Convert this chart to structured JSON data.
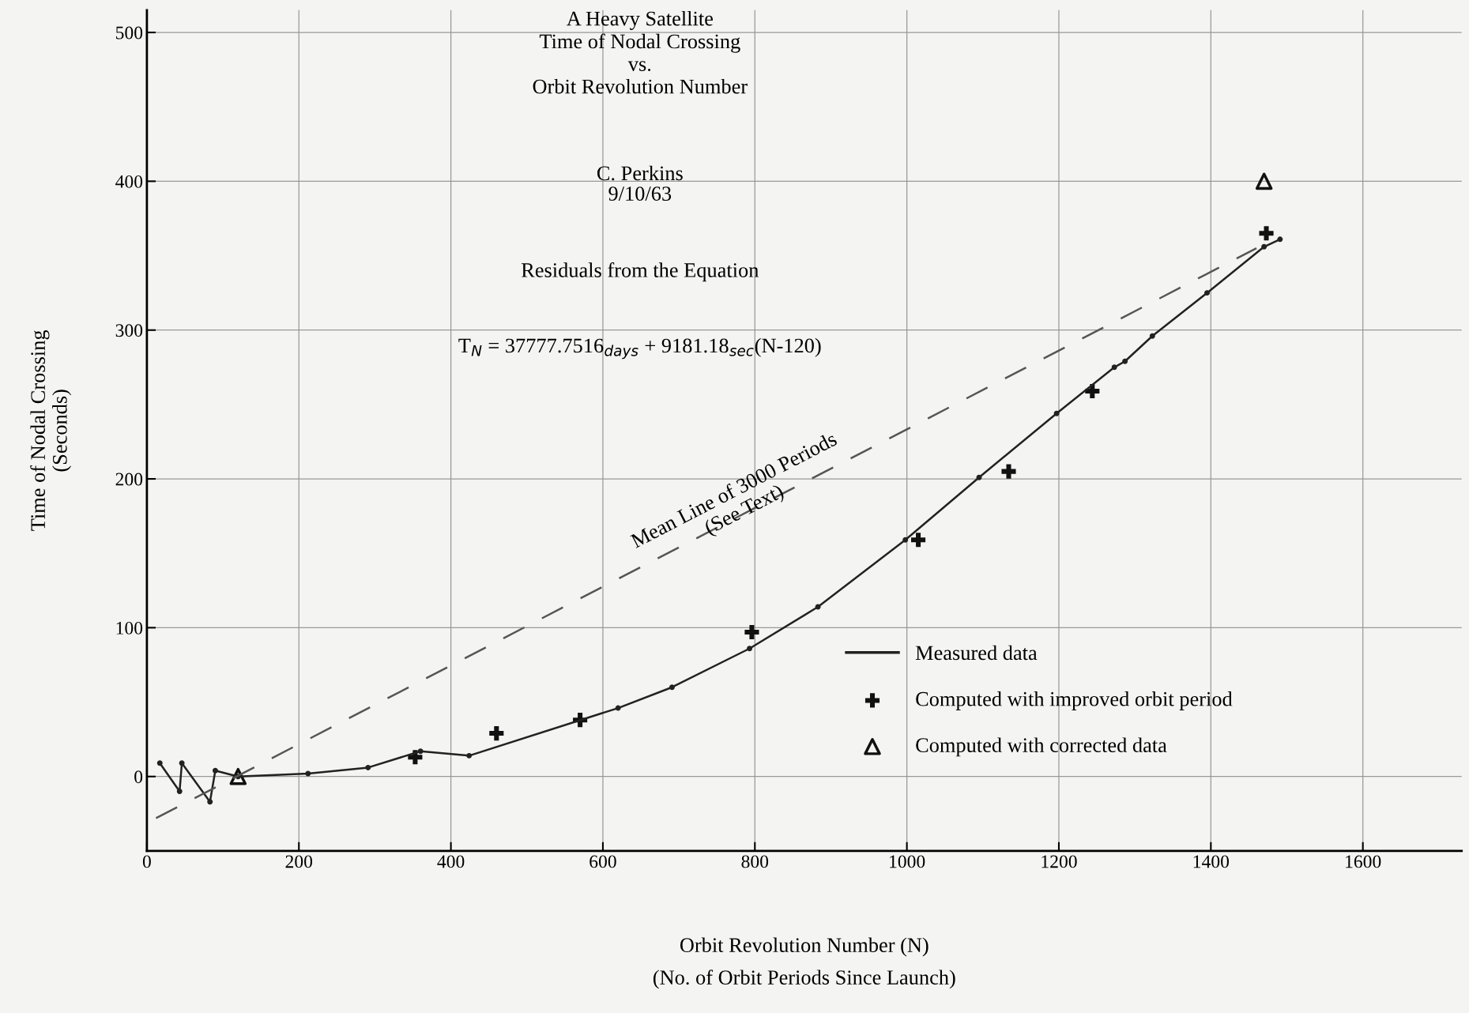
{
  "chart_data": {
    "type": "line",
    "title": "A Heavy Satellite\nTime of Nodal Crossing\nvs.\nOrbit Revolution Number",
    "subtitle": "C. Perkins\n9/10/63",
    "xlabel": "Orbit Revolution Number (N)\n(No. of Orbit Periods Since Launch)",
    "ylabel": "Time of Nodal Crossing\n(Seconds)",
    "annotations": [
      "Residuals from the Equation",
      "T$_{N}$ = 37777.7516$_{days}$ + 9181.18$_{sec}$(N-120)",
      "Mean Line of 3000 Periods\n(See Text)"
    ],
    "series": [
      {
        "name": "Measured data",
        "color": "#222222",
        "marker": "circle",
        "line_style": "solid",
        "x": [
          17,
          43,
          46,
          83,
          90,
          120,
          212,
          291,
          360,
          424,
          620,
          691,
          793,
          883,
          998,
          1095,
          1197,
          1273,
          1287,
          1323,
          1395,
          1470,
          1491
        ],
        "values": [
          9,
          -10,
          9,
          -17,
          4,
          0,
          2,
          6,
          17,
          14,
          46,
          60,
          86,
          114,
          159,
          201,
          244,
          275,
          279,
          296,
          325,
          356,
          361
        ]
      },
      {
        "name": "Computed with improved orbit period",
        "type": "scatter",
        "color": "#111111",
        "marker": "cross",
        "x": [
          353,
          460,
          570,
          796,
          1015,
          1134,
          1244,
          1473
        ],
        "values": [
          13,
          29,
          38,
          97,
          159,
          205,
          259,
          365
        ]
      },
      {
        "name": "Computed with corrected data",
        "type": "scatter",
        "color": "#111111",
        "marker": "triangle",
        "x": [
          120,
          1470
        ],
        "values": [
          0,
          400
        ]
      },
      {
        "type": "line",
        "color": "#555555",
        "line_style": "dashed",
        "marker": "none",
        "x": [
          12,
          1460
        ],
        "values": [
          -28,
          355
        ]
      }
    ],
    "xlim": [
      0,
      1730
    ],
    "ylim": [
      -50,
      515
    ],
    "xticks": [
      0,
      200,
      400,
      600,
      800,
      1000,
      1200,
      1400,
      1600
    ],
    "yticks": [
      0,
      100,
      200,
      300,
      400,
      500
    ],
    "grid": true,
    "legend": "bottom right"
  }
}
